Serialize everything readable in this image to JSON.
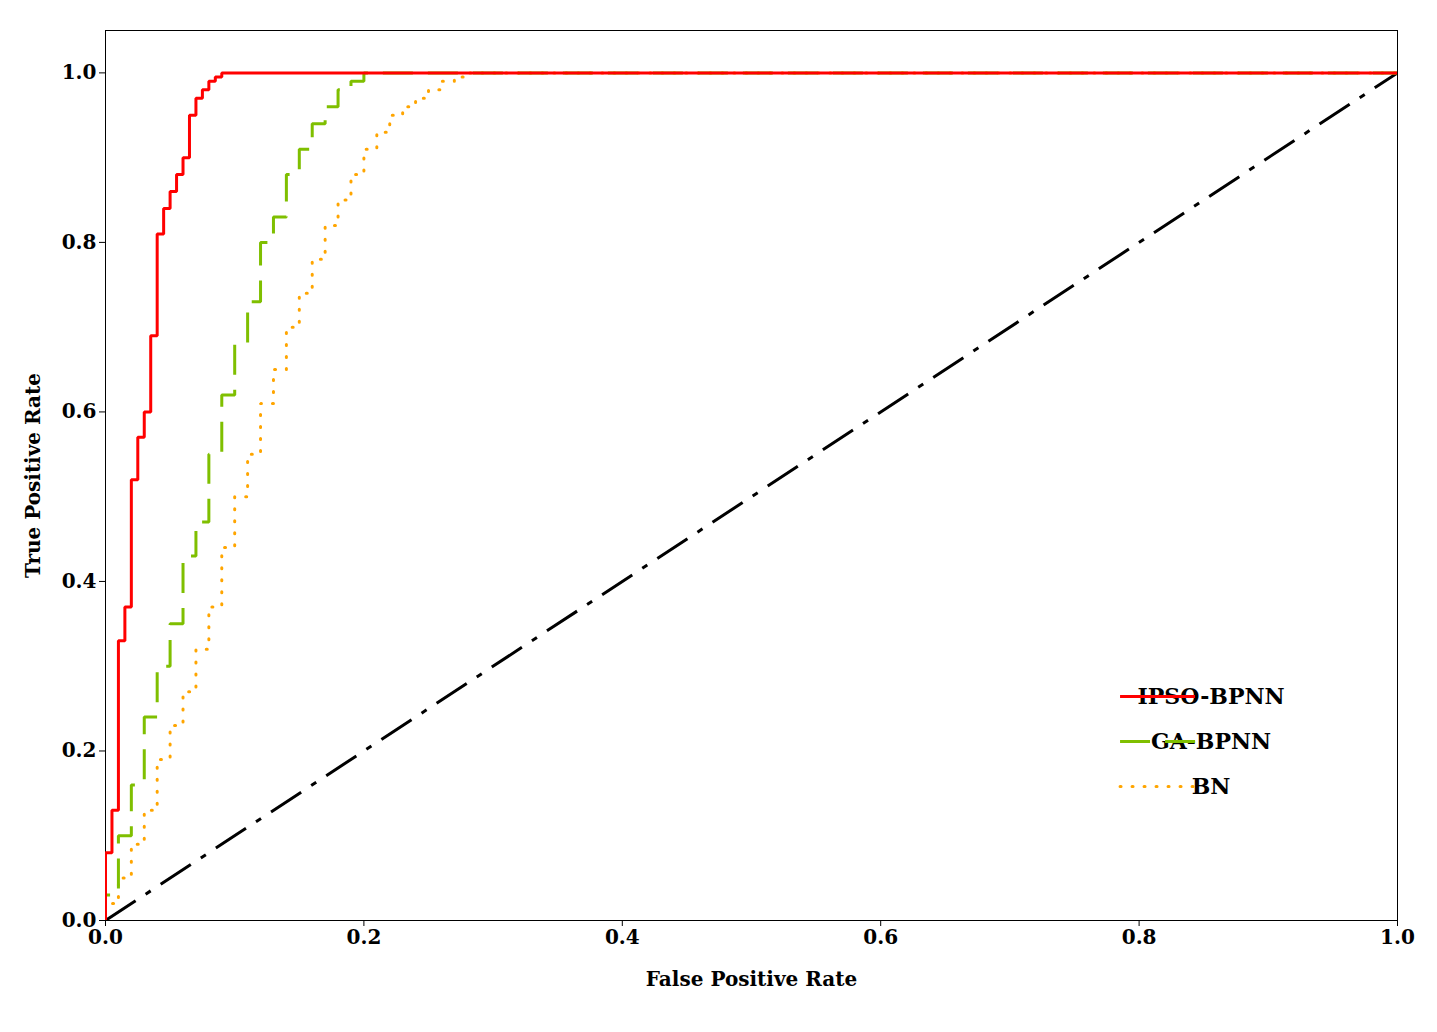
{
  "chart_data": {
    "type": "line",
    "xlabel": "False Positive Rate",
    "ylabel": "True Positive Rate",
    "xlim": [
      0.0,
      1.0
    ],
    "ylim": [
      0.0,
      1.05
    ],
    "xticks": [
      {
        "value": 0.0,
        "label": "0.0"
      },
      {
        "value": 0.2,
        "label": "0.2"
      },
      {
        "value": 0.4,
        "label": "0.4"
      },
      {
        "value": 0.6,
        "label": "0.6"
      },
      {
        "value": 0.8,
        "label": "0.8"
      },
      {
        "value": 1.0,
        "label": "1.0"
      }
    ],
    "yticks": [
      {
        "value": 0.0,
        "label": "0.0"
      },
      {
        "value": 0.2,
        "label": "0.2"
      },
      {
        "value": 0.4,
        "label": "0.4"
      },
      {
        "value": 0.6,
        "label": "0.6"
      },
      {
        "value": 0.8,
        "label": "0.8"
      },
      {
        "value": 1.0,
        "label": "1.0"
      }
    ],
    "grid": false,
    "legend": "lower right",
    "series": [
      {
        "name": "IPSO-BPNN",
        "color": "#FF0000",
        "line_style": "solid",
        "x": [
          0.0,
          0.0,
          0.005,
          0.005,
          0.01,
          0.01,
          0.015,
          0.015,
          0.02,
          0.02,
          0.025,
          0.025,
          0.03,
          0.03,
          0.035,
          0.035,
          0.04,
          0.04,
          0.045,
          0.045,
          0.05,
          0.05,
          0.055,
          0.055,
          0.06,
          0.06,
          0.065,
          0.065,
          0.07,
          0.07,
          0.075,
          0.075,
          0.08,
          0.08,
          0.085,
          0.085,
          0.09,
          0.09,
          0.095,
          0.095,
          0.1,
          0.1,
          0.105,
          0.105,
          0.11,
          0.11,
          0.115,
          1.0
        ],
        "values": [
          0.0,
          0.08,
          0.08,
          0.13,
          0.13,
          0.33,
          0.33,
          0.37,
          0.37,
          0.52,
          0.52,
          0.57,
          0.57,
          0.6,
          0.6,
          0.69,
          0.69,
          0.81,
          0.81,
          0.84,
          0.84,
          0.86,
          0.86,
          0.88,
          0.88,
          0.9,
          0.9,
          0.95,
          0.95,
          0.97,
          0.97,
          0.98,
          0.98,
          0.99,
          0.99,
          0.995,
          0.995,
          1.0,
          1.0,
          1.0,
          1.0,
          1.0,
          1.0,
          1.0,
          1.0,
          1.0,
          1.0,
          1.0
        ]
      },
      {
        "name": "GA-BPNN",
        "color": "#7FBF00",
        "line_style": "dashed",
        "x": [
          0.0,
          0.0,
          0.01,
          0.01,
          0.02,
          0.02,
          0.03,
          0.03,
          0.04,
          0.04,
          0.05,
          0.05,
          0.06,
          0.06,
          0.07,
          0.07,
          0.08,
          0.08,
          0.09,
          0.09,
          0.1,
          0.1,
          0.11,
          0.11,
          0.12,
          0.12,
          0.13,
          0.13,
          0.14,
          0.14,
          0.15,
          0.15,
          0.16,
          0.16,
          0.17,
          0.17,
          0.18,
          0.18,
          0.19,
          0.19,
          0.2,
          0.2,
          0.21,
          0.21,
          0.22,
          1.0
        ],
        "values": [
          0.0,
          0.03,
          0.03,
          0.1,
          0.1,
          0.16,
          0.16,
          0.24,
          0.24,
          0.3,
          0.3,
          0.35,
          0.35,
          0.43,
          0.43,
          0.47,
          0.47,
          0.55,
          0.55,
          0.62,
          0.62,
          0.68,
          0.68,
          0.73,
          0.73,
          0.8,
          0.8,
          0.83,
          0.83,
          0.88,
          0.88,
          0.91,
          0.91,
          0.94,
          0.94,
          0.96,
          0.96,
          0.98,
          0.98,
          0.99,
          0.99,
          1.0,
          1.0,
          1.0,
          1.0,
          1.0
        ]
      },
      {
        "name": "BN",
        "color": "#FFA500",
        "line_style": "dotted",
        "x": [
          0.0,
          0.0,
          0.01,
          0.01,
          0.02,
          0.02,
          0.03,
          0.03,
          0.04,
          0.04,
          0.05,
          0.05,
          0.06,
          0.06,
          0.07,
          0.07,
          0.08,
          0.08,
          0.09,
          0.09,
          0.1,
          0.1,
          0.11,
          0.11,
          0.12,
          0.12,
          0.13,
          0.13,
          0.14,
          0.14,
          0.15,
          0.15,
          0.16,
          0.16,
          0.17,
          0.17,
          0.18,
          0.18,
          0.19,
          0.19,
          0.2,
          0.2,
          0.21,
          0.21,
          0.22,
          0.22,
          0.23,
          0.23,
          0.24,
          0.24,
          0.25,
          0.25,
          0.26,
          0.26,
          0.27,
          0.27,
          0.28,
          0.28,
          0.29,
          0.29,
          0.3,
          1.0
        ],
        "values": [
          0.0,
          0.02,
          0.02,
          0.05,
          0.05,
          0.09,
          0.09,
          0.13,
          0.13,
          0.19,
          0.19,
          0.23,
          0.23,
          0.27,
          0.27,
          0.32,
          0.32,
          0.37,
          0.37,
          0.44,
          0.44,
          0.5,
          0.5,
          0.55,
          0.55,
          0.61,
          0.61,
          0.65,
          0.65,
          0.7,
          0.7,
          0.74,
          0.74,
          0.78,
          0.78,
          0.82,
          0.82,
          0.85,
          0.85,
          0.88,
          0.88,
          0.91,
          0.91,
          0.93,
          0.93,
          0.95,
          0.95,
          0.96,
          0.96,
          0.97,
          0.97,
          0.98,
          0.98,
          0.99,
          0.99,
          0.995,
          0.995,
          1.0,
          1.0,
          1.0,
          1.0,
          1.0
        ]
      }
    ],
    "diagonal": {
      "x": [
        0,
        1
      ],
      "values": [
        0,
        1
      ],
      "color": "#000000",
      "line_style": "dashdot"
    }
  }
}
